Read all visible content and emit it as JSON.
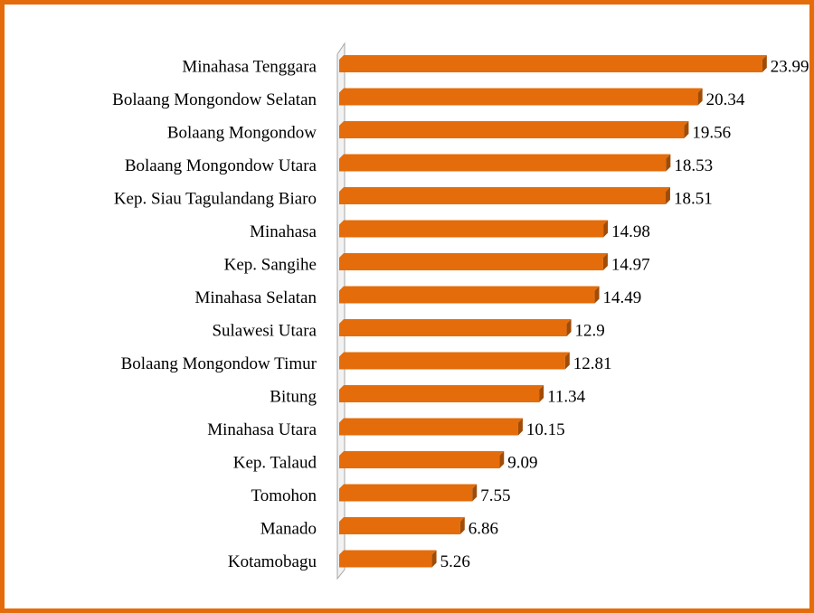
{
  "chart_data": {
    "type": "bar",
    "orientation": "horizontal",
    "categories": [
      "Minahasa Tenggara",
      "Bolaang Mongondow Selatan",
      "Bolaang Mongondow",
      "Bolaang Mongondow Utara",
      "Kep. Siau Tagulandang Biaro",
      "Minahasa",
      "Kep. Sangihe",
      "Minahasa Selatan",
      "Sulawesi Utara",
      "Bolaang Mongondow Timur",
      "Bitung",
      "Minahasa Utara",
      "Kep. Talaud",
      "Tomohon",
      "Manado",
      "Kotamobagu"
    ],
    "values": [
      23.99,
      20.34,
      19.56,
      18.53,
      18.51,
      14.98,
      14.97,
      14.49,
      12.9,
      12.81,
      11.34,
      10.15,
      9.09,
      7.55,
      6.86,
      5.26
    ],
    "color": "#e46c0a",
    "xlim": [
      0,
      24
    ]
  }
}
